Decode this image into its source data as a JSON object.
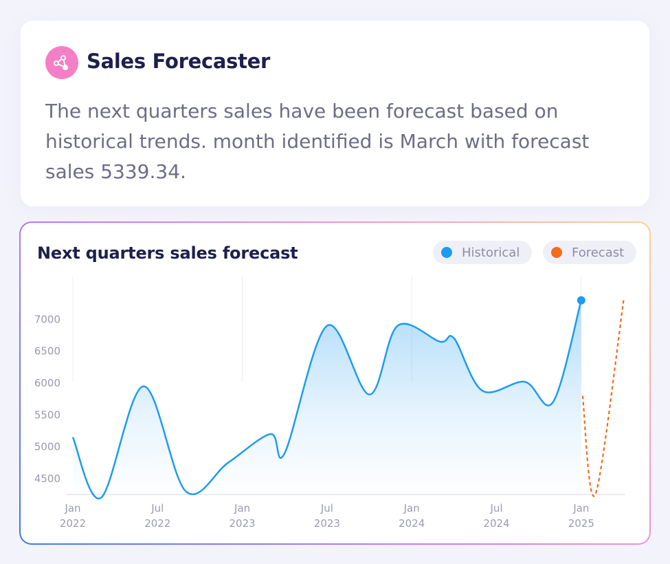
{
  "header": {
    "title": "Sales Forecaster",
    "icon": "share-nodes-icon",
    "summary": "The next quarters sales have been forecast based on historical trends. month identified is March with forecast sales 5339.34."
  },
  "colors": {
    "historical": "#1e9bf0",
    "forecast": "#f26c1a",
    "icon_bg": "#f47fc6"
  },
  "chart_data": {
    "type": "line",
    "title": "Next quarters sales forecast",
    "legend": [
      "Historical",
      "Forecast"
    ],
    "legend_position": "top-right",
    "ylim": [
      4250,
      7450
    ],
    "y_ticks": [
      4500,
      5000,
      5500,
      6000,
      6500,
      7000
    ],
    "x_ticks": [
      {
        "month": 0,
        "line1": "Jan",
        "line2": "2022"
      },
      {
        "month": 6,
        "line1": "Jul",
        "line2": "2022"
      },
      {
        "month": 12,
        "line1": "Jan",
        "line2": "2023"
      },
      {
        "month": 18,
        "line1": "Jul",
        "line2": "2023"
      },
      {
        "month": 24,
        "line1": "Jan",
        "line2": "2024"
      },
      {
        "month": 30,
        "line1": "Jul",
        "line2": "2024"
      },
      {
        "month": 36,
        "line1": "Jan",
        "line2": "2025"
      }
    ],
    "series": [
      {
        "name": "Historical",
        "x": [
          "2022-01",
          "2022-03",
          "2022-06",
          "2022-09",
          "2022-12",
          "2023-03",
          "2023-04",
          "2023-07",
          "2023-10",
          "2023-12",
          "2024-03",
          "2024-04",
          "2024-06",
          "2024-09",
          "2024-11",
          "2025-01"
        ],
        "y": [
          5150,
          4200,
          5950,
          4300,
          4750,
          5200,
          4900,
          6900,
          5820,
          6900,
          6650,
          6700,
          5880,
          6020,
          5700,
          7300
        ]
      },
      {
        "name": "Forecast",
        "x": [
          "2025-01",
          "2025-02",
          "2025-04"
        ],
        "y": [
          5800,
          4250,
          7300
        ]
      }
    ],
    "grid": false
  }
}
